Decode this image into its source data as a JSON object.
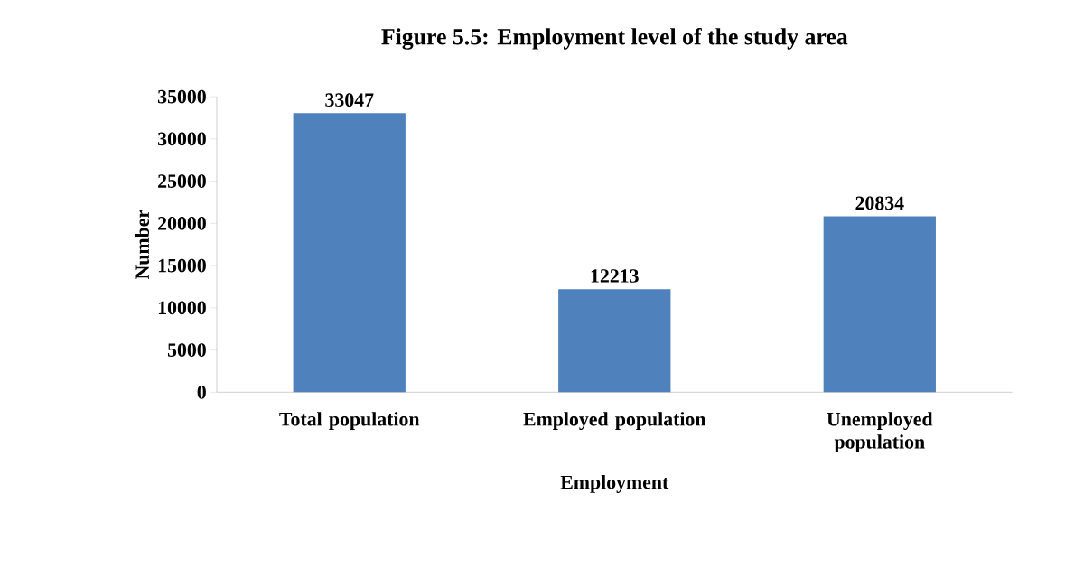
{
  "chart_data": {
    "type": "bar",
    "title": "Figure 5.5: Employment level of the study area",
    "xlabel": "Employment",
    "ylabel": "Number",
    "categories": [
      "Total population",
      "Employed population",
      "Unemployed population"
    ],
    "values": [
      33047,
      12213,
      20834
    ],
    "color": "#4f81bd",
    "ylim": [
      0,
      35000
    ],
    "yticks": [
      0,
      5000,
      10000,
      15000,
      20000,
      25000,
      30000,
      35000
    ],
    "data_labels": true
  }
}
